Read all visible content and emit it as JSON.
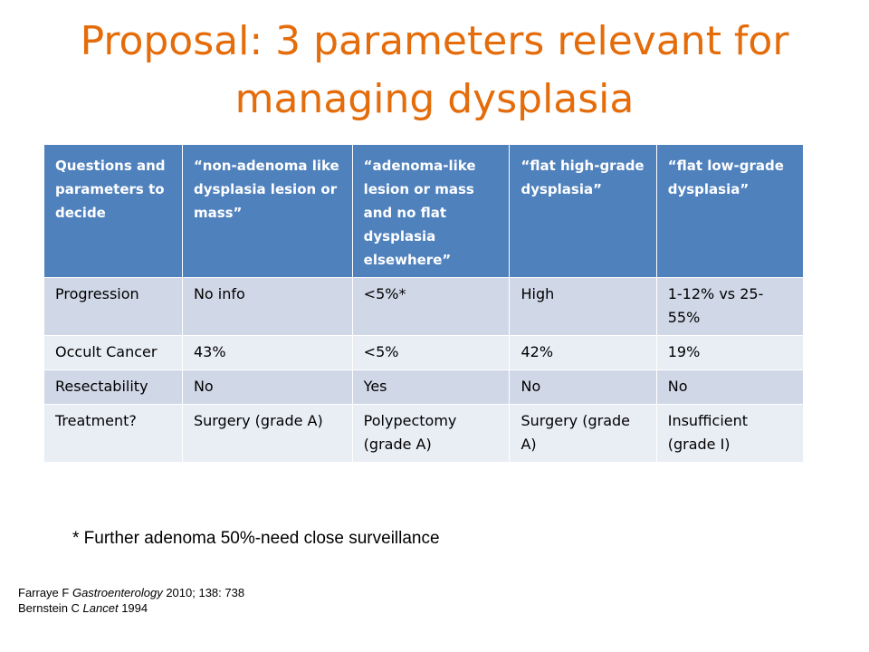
{
  "slide": {
    "title": "Proposal: 3 parameters relevant for managing dysplasia"
  },
  "table": {
    "header": {
      "col1": "Questions and parameters to decide",
      "col2": "“non-adenoma like dysplasia lesion or mass”",
      "col3": "“adenoma-like lesion or mass and no flat dysplasia elsewhere”",
      "col4": "“flat high-grade dysplasia”",
      "col5": "“flat low-grade dysplasia”"
    },
    "rows": [
      {
        "c1": "Progression",
        "c2": "No info",
        "c3": "<5%*",
        "c4": "High",
        "c5": "1-12% vs 25-55%"
      },
      {
        "c1": "Occult Cancer",
        "c2": "43%",
        "c3": "<5%",
        "c4": "42%",
        "c5": "19%"
      },
      {
        "c1": "Resectability",
        "c2": "No",
        "c3": "Yes",
        "c4": "No",
        "c5": "No"
      },
      {
        "c1": "Treatment?",
        "c2": "Surgery (grade A)",
        "c3": "Polypectomy (grade A)",
        "c4": "Surgery (grade A)",
        "c5": "Insufficient (grade I)"
      }
    ]
  },
  "footnote": "* Further adenoma 50%-need close surveillance",
  "references": {
    "ref1": {
      "author": "Farraye F ",
      "journal": "Gastroenterology",
      "rest": " 2010; 138: 738"
    },
    "ref2": {
      "author": "Bernstein C ",
      "journal": "Lancet",
      "rest": " 1994"
    }
  },
  "colors": {
    "title": "#e46c0a",
    "header_bg": "#4f81bd",
    "row_odd_bg": "#d0d8e8",
    "row_even_bg": "#e9edf4"
  }
}
